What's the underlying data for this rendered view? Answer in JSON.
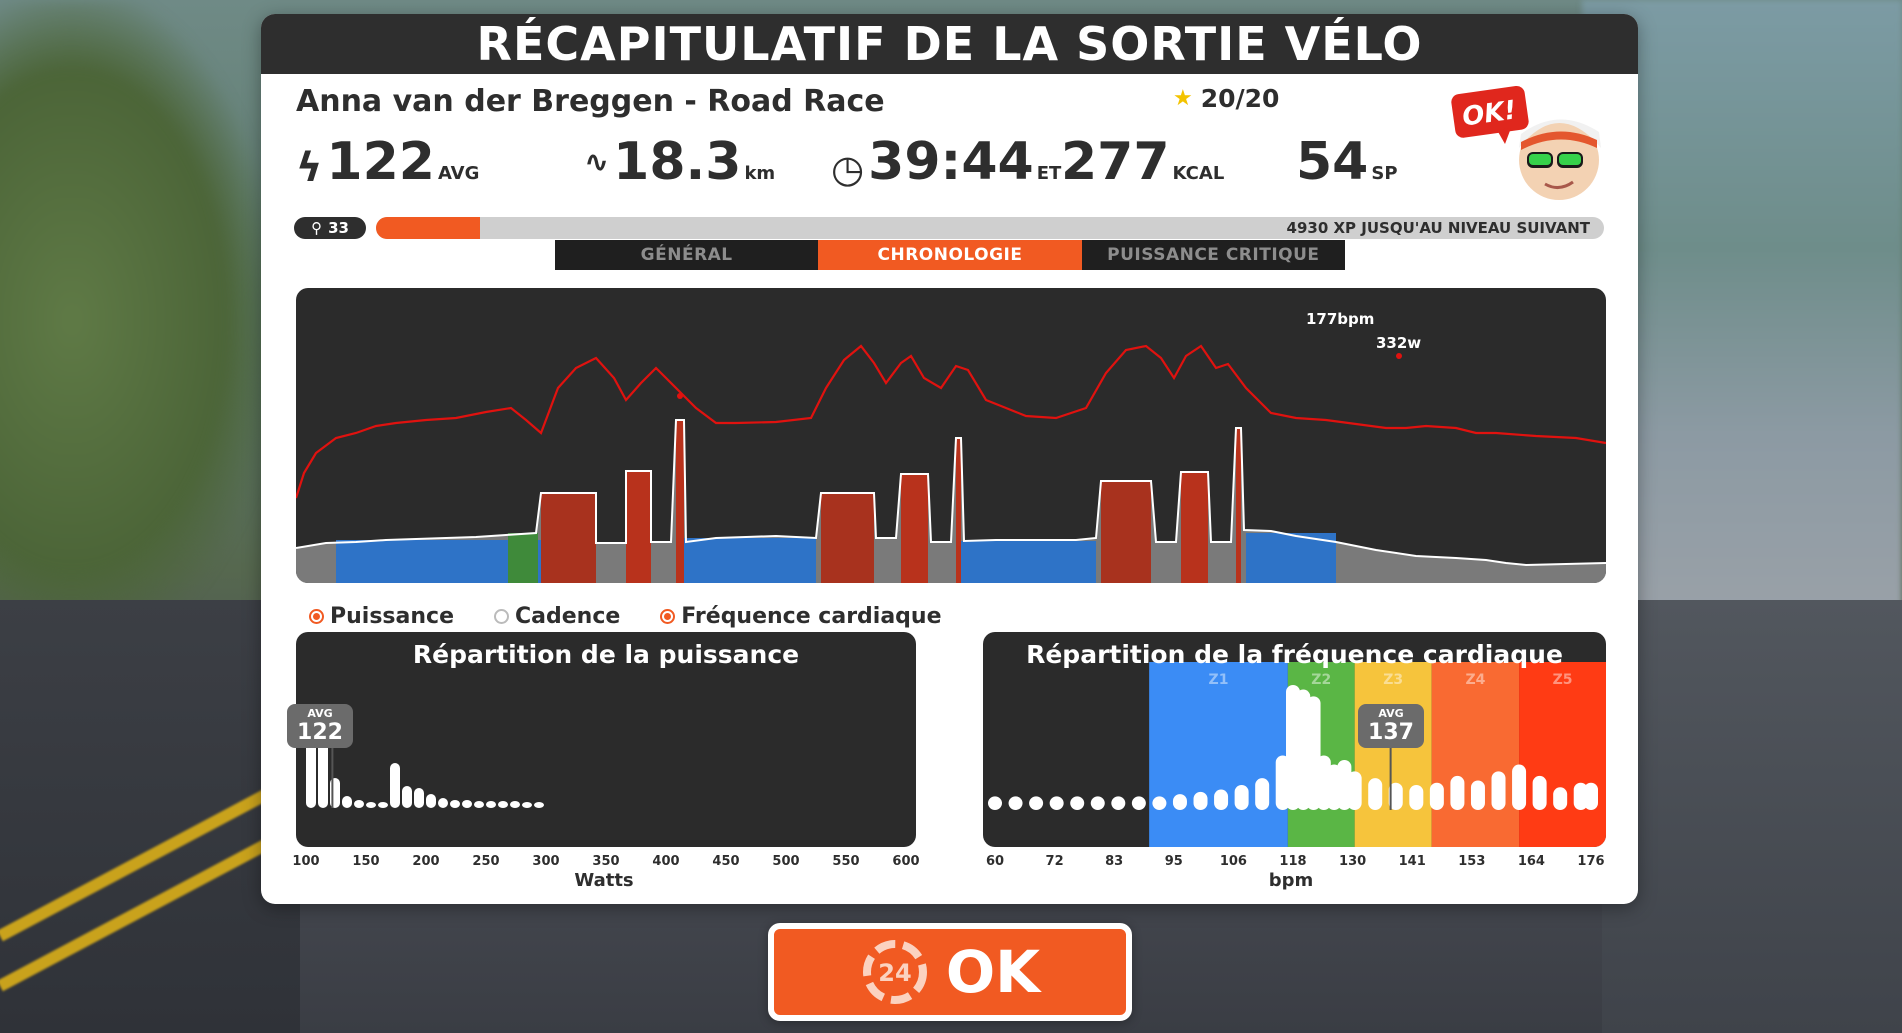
{
  "title": "RÉCAPITULATIF DE LA SORTIE VÉLO",
  "event_name": "Anna van der Breggen - Road Race",
  "stars": "20/20",
  "stats": {
    "power": {
      "value": "122",
      "unit": "AVG"
    },
    "distance": {
      "value": "18.3",
      "unit": "km"
    },
    "time": {
      "value": "39:44",
      "unit": "ET"
    },
    "calories": {
      "value": "277",
      "unit": "KCAL"
    },
    "sport_points": {
      "value": "54",
      "unit": "SP"
    }
  },
  "avatar": {
    "badge": "OK!"
  },
  "level": "33",
  "xp": {
    "text": "4930 XP JUSQU'AU NIVEAU SUIVANT",
    "progress_fraction": 0.085
  },
  "tabs": [
    {
      "label": "GÉNÉRAL",
      "active": false
    },
    {
      "label": "CHRONOLOGIE",
      "active": true
    },
    {
      "label": "PUISSANCE CRITIQUE",
      "active": false
    }
  ],
  "timeline": {
    "max_power_label": "332w",
    "max_hr_label": "177bpm"
  },
  "legend": [
    {
      "label": "Puissance",
      "checked": true
    },
    {
      "label": "Cadence",
      "checked": false
    },
    {
      "label": "Fréquence cardiaque",
      "checked": true
    }
  ],
  "power_hist": {
    "title": "Répartition de la puissance",
    "avg_label": "AVG",
    "avg_value": "122",
    "ticks": [
      "100",
      "150",
      "200",
      "250",
      "300",
      "350",
      "400",
      "450",
      "500",
      "550",
      "600"
    ],
    "xlabel": "Watts"
  },
  "hr_hist": {
    "title": "Répartition de la fréquence cardiaque",
    "avg_label": "AVG",
    "avg_value": "137",
    "zones": [
      "Z1",
      "Z2",
      "Z3",
      "Z4",
      "Z5"
    ],
    "ticks": [
      "60",
      "72",
      "83",
      "95",
      "106",
      "118",
      "130",
      "141",
      "153",
      "164",
      "176"
    ],
    "xlabel": "bpm"
  },
  "ok_button": {
    "label": "OK",
    "icon_text": "24"
  },
  "colors": {
    "accent": "#f15a22",
    "hr_line": "#e0120f",
    "zone_blue": "#3b8cf5",
    "zone_green": "#5ab645",
    "zone_yellow": "#f6c43c",
    "zone_orange": "#f96a32",
    "zone_red": "#ff3b14"
  },
  "chart_data": [
    {
      "type": "bar",
      "title": "Répartition de la puissance",
      "xlabel": "Watts",
      "x": [
        100,
        110,
        120,
        130,
        140,
        150,
        160,
        170,
        180,
        190,
        200,
        210,
        220,
        230,
        240,
        250,
        260,
        270,
        280,
        290,
        300,
        310,
        320
      ],
      "values": [
        100,
        100,
        30,
        12,
        8,
        6,
        6,
        45,
        22,
        20,
        14,
        10,
        8,
        8,
        7,
        7,
        7,
        7,
        6,
        6,
        0,
        0,
        0
      ]
    },
    {
      "type": "bar",
      "title": "Répartition de la fréquence cardiaque",
      "xlabel": "bpm",
      "x": [
        60,
        64,
        68,
        72,
        76,
        80,
        84,
        88,
        92,
        96,
        100,
        104,
        108,
        112,
        116,
        118,
        120,
        122,
        124,
        126,
        128,
        130,
        134,
        138,
        142,
        146,
        150,
        154,
        158,
        162,
        166,
        170,
        174,
        176
      ],
      "values": [
        6,
        6,
        6,
        6,
        6,
        6,
        6,
        6,
        6,
        7,
        8,
        9,
        11,
        14,
        24,
        55,
        53,
        50,
        24,
        20,
        22,
        17,
        14,
        12,
        11,
        12,
        15,
        13,
        17,
        20,
        15,
        10,
        12,
        12
      ]
    }
  ]
}
